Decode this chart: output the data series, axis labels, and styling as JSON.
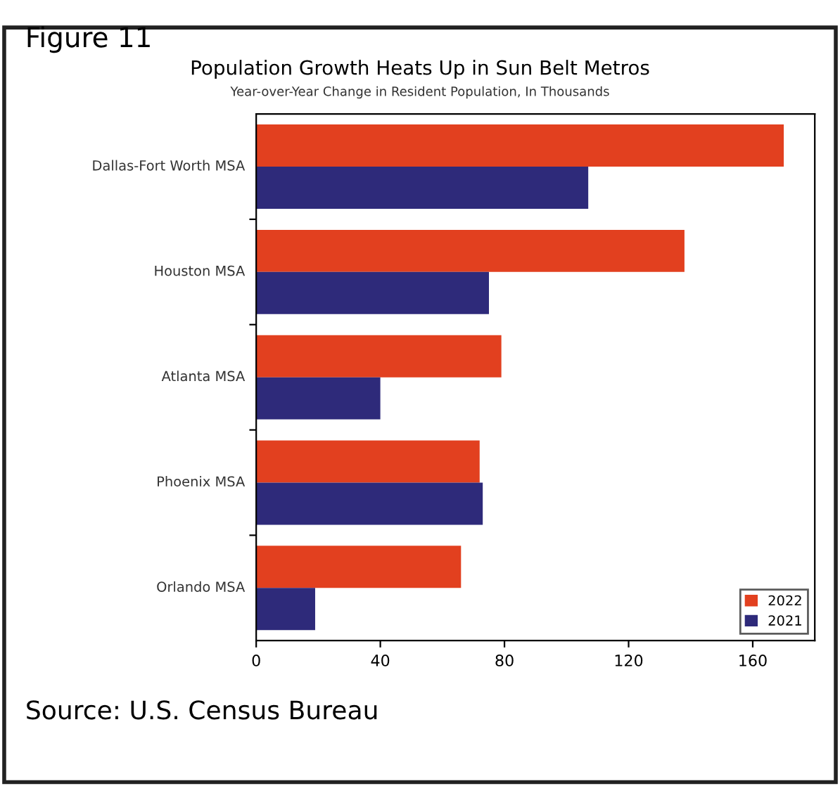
{
  "chart_data": {
    "type": "bar",
    "orientation": "horizontal",
    "title": "Population Growth Heats Up in Sun Belt Metros",
    "subtitle": "Year-over-Year Change in Resident Population, In Thousands",
    "annotations": [
      "Figure 11",
      "Source: U.S. Census Bureau"
    ],
    "categories": [
      "Dallas-Fort Worth MSA",
      "Houston MSA",
      "Atlanta MSA",
      "Phoenix MSA",
      "Orlando MSA"
    ],
    "series": [
      {
        "name": "2022",
        "color": "#e2401f",
        "values": [
          170,
          138,
          79,
          72,
          66
        ]
      },
      {
        "name": "2021",
        "color": "#2e2a7a",
        "values": [
          107,
          75,
          40,
          73,
          19
        ]
      }
    ],
    "xlim": [
      0,
      180
    ],
    "xticks": [
      0,
      40,
      80,
      120,
      160
    ],
    "grid": false,
    "legend": "bottom right"
  }
}
